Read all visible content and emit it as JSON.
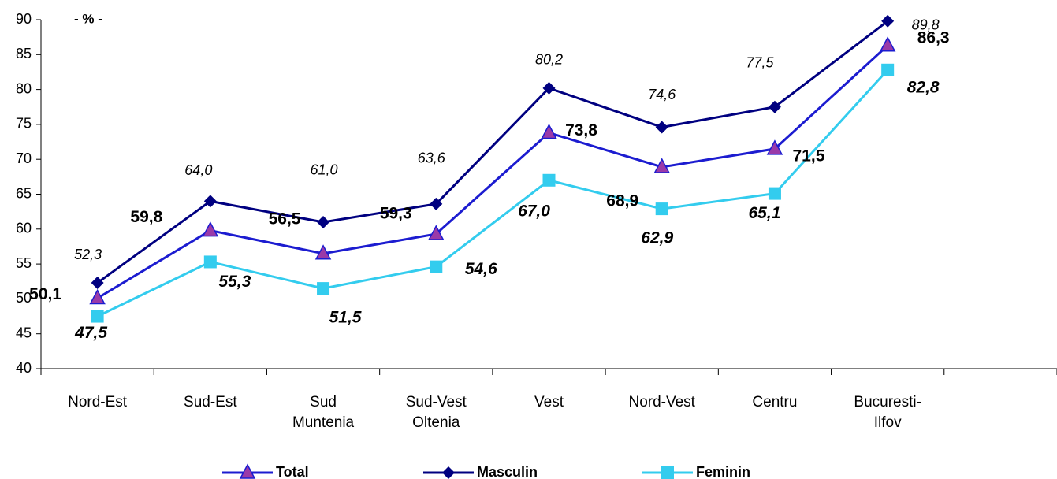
{
  "chart_data": {
    "type": "line",
    "annotation": "- % -",
    "categories": [
      "Nord-Est",
      "Sud-Est",
      "Sud Muntenia",
      "Sud-Vest Oltenia",
      "Vest",
      "Nord-Vest",
      "Centru",
      "Bucuresti-Ilfov",
      null
    ],
    "series": [
      {
        "name": "Masculin",
        "color": "#000080",
        "marker": "diamond",
        "values": [
          52.3,
          64.0,
          61.0,
          63.6,
          80.2,
          74.6,
          77.5,
          89.8,
          null
        ],
        "value_labels": [
          "52,3",
          "64,0",
          "61,0",
          "63,6",
          "80,2",
          "74,6",
          "77,5",
          "89,8",
          null
        ]
      },
      {
        "name": "Total",
        "color": "#1c1cd0",
        "marker": "triangle",
        "marker_color": "#9a3aa8",
        "values": [
          50.1,
          59.8,
          56.5,
          59.3,
          73.8,
          68.9,
          71.5,
          86.3,
          null
        ],
        "value_labels": [
          "50,1",
          "59,8",
          "56,5",
          "59,3",
          "73,8",
          "68,9",
          "71,5",
          "86,3",
          null
        ]
      },
      {
        "name": "Feminin",
        "color": "#33ccee",
        "marker": "square",
        "values": [
          47.5,
          55.3,
          51.5,
          54.6,
          67.0,
          62.9,
          65.1,
          82.8,
          null
        ],
        "value_labels": [
          "47,5",
          "55,3",
          "51,5",
          "54,6",
          "67,0",
          "62,9",
          "65,1",
          "82,8",
          null
        ]
      }
    ],
    "ylim": [
      40,
      90
    ],
    "yticks": [
      40,
      45,
      50,
      55,
      60,
      65,
      70,
      75,
      80,
      85,
      90
    ],
    "grid": false,
    "legend": "bottom"
  }
}
